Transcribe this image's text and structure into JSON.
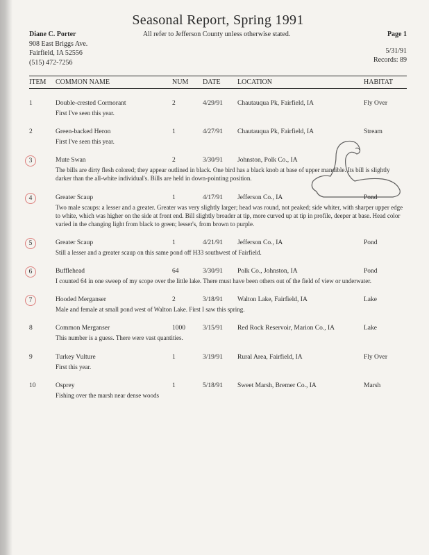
{
  "title": "Seasonal Report, Spring 1991",
  "author": {
    "name": "Diane C. Porter",
    "street": "908 East Briggs Ave.",
    "city": "Fairfield, IA 52556",
    "phone": "(515) 472-7256"
  },
  "subtitle": "All refer to Jefferson County unless otherwise stated.",
  "page_label": "Page 1",
  "report_date": "5/31/91",
  "records_label": "Records: 89",
  "columns": {
    "item": "ITEM",
    "name": "COMMON NAME",
    "num": "NUM",
    "date": "DATE",
    "location": "LOCATION",
    "habitat": "HABITAT"
  },
  "entries": [
    {
      "item": "1",
      "circled": false,
      "name": "Double-crested Cormorant",
      "num": "2",
      "date": "4/29/91",
      "location": "Chautauqua Pk, Fairfield, IA",
      "habitat": "Fly Over",
      "note": "First I've seen this year."
    },
    {
      "item": "2",
      "circled": false,
      "name": "Green-backed Heron",
      "num": "1",
      "date": "4/27/91",
      "location": "Chautauqua Pk, Fairfield, IA",
      "habitat": "Stream",
      "note": "First I've seen this year."
    },
    {
      "item": "3",
      "circled": true,
      "name": "Mute Swan",
      "num": "2",
      "date": "3/30/91",
      "location": "Johnston, Polk Co., IA",
      "habitat": "",
      "note": "The bills are dirty flesh colored; they appear outlined in black. One bird has a black knob at base of upper mandible. Its bill is slightly darker than the all-white individual's. Bills are held in down-pointing position."
    },
    {
      "item": "4",
      "circled": true,
      "name": "Greater Scaup",
      "num": "1",
      "date": "4/17/91",
      "location": "Jefferson Co., IA",
      "habitat": "Pond",
      "note": "Two male scaups: a lesser and a greater. Greater was very slightly larger; head was round, not peaked; side whiter, with sharper upper edge to white, which was higher on the side at front end. Bill slightly broader at tip, more curved up at tip in profile, deeper at base. Head color varied in the changing light from black to green; lesser's, from brown to purple."
    },
    {
      "item": "5",
      "circled": true,
      "name": "Greater Scaup",
      "num": "1",
      "date": "4/21/91",
      "location": "Jefferson Co., IA",
      "habitat": "Pond",
      "note": "Still a lesser and a greater scaup on this same pond off H33 southwest of Fairfield."
    },
    {
      "item": "6",
      "circled": true,
      "name": "Bufflehead",
      "num": "64",
      "date": "3/30/91",
      "location": "Polk Co., Johnston, IA",
      "habitat": "Pond",
      "note": "I counted 64 in one sweep of my scope over the little lake. There must have been others out of the field of view or underwater."
    },
    {
      "item": "7",
      "circled": true,
      "name": "Hooded Merganser",
      "num": "2",
      "date": "3/18/91",
      "location": "Walton Lake, Fairfield, IA",
      "habitat": "Lake",
      "note": "Male and female at small pond west of Walton Lake. First I saw this spring."
    },
    {
      "item": "8",
      "circled": false,
      "name": "Common Merganser",
      "num": "1000",
      "date": "3/15/91",
      "location": "Red Rock Reservoir, Marion Co., IA",
      "habitat": "Lake",
      "note": "This number is a guess. There were vast quantities."
    },
    {
      "item": "9",
      "circled": false,
      "name": "Turkey Vulture",
      "num": "1",
      "date": "3/19/91",
      "location": "Rural Area, Fairfield, IA",
      "habitat": "Fly Over",
      "note": "First this year."
    },
    {
      "item": "10",
      "circled": false,
      "name": "Osprey",
      "num": "1",
      "date": "5/18/91",
      "location": "Sweet Marsh, Bremer Co., IA",
      "habitat": "Marsh",
      "note": "Fishing over the marsh near dense woods"
    }
  ]
}
